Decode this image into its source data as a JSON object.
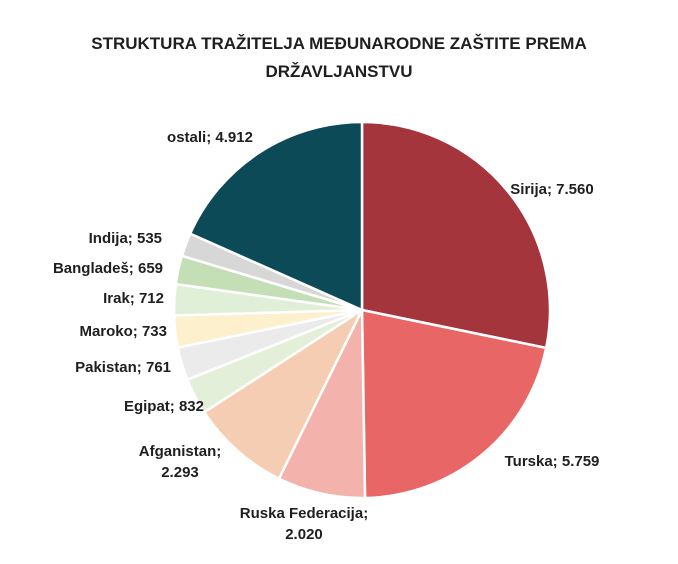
{
  "chart_data": {
    "type": "pie",
    "title": [
      "STRUKTURA TRAŽITELJA MEĐUNARODNE ZAŠTITE PREMA",
      "DRŽAVLJANSTVU"
    ],
    "slices": [
      {
        "name": "Sirija",
        "value": 7560,
        "display": "7.560",
        "color": "#a5353d"
      },
      {
        "name": "Turska",
        "value": 5759,
        "display": "5.759",
        "color": "#e96666"
      },
      {
        "name": "Ruska Federacija",
        "value": 2020,
        "display": "2.020",
        "color": "#f3b2ab"
      },
      {
        "name": "Afganistan",
        "value": 2293,
        "display": "2.293",
        "color": "#f5cdb2"
      },
      {
        "name": "Egipat",
        "value": 832,
        "display": "832",
        "color": "#e3efd9"
      },
      {
        "name": "Pakistan",
        "value": 761,
        "display": "761",
        "color": "#ebebeb"
      },
      {
        "name": "Maroko",
        "value": 733,
        "display": "733",
        "color": "#fdf0cd"
      },
      {
        "name": "Irak",
        "value": 712,
        "display": "712",
        "color": "#e0efd8"
      },
      {
        "name": "Bangladeš",
        "value": 659,
        "display": "659",
        "color": "#c4dfb5"
      },
      {
        "name": "Indija",
        "value": 535,
        "display": "535",
        "color": "#d7d7d7"
      },
      {
        "name": "ostali",
        "value": 4912,
        "display": "4.912",
        "color": "#0c4a57"
      }
    ]
  }
}
